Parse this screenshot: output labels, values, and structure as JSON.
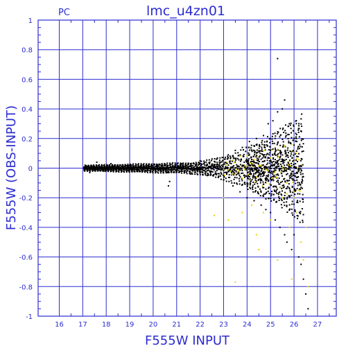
{
  "header": {
    "left_label": "PC",
    "title": "lmc_u4zn01"
  },
  "colors": {
    "axis": "#2b2bd0",
    "points_primary": "#000000",
    "points_secondary": "#e6d200",
    "background": "#ffffff"
  },
  "chart_data": {
    "type": "scatter",
    "title": "lmc_u4zn01",
    "xlabel": "F555W INPUT",
    "ylabel": "F555W (OBS-INPUT)",
    "xlim": [
      15.1,
      27.8
    ],
    "ylim": [
      -1,
      1
    ],
    "grid": true,
    "x_ticks": [
      "16",
      "17",
      "18",
      "19",
      "20",
      "21",
      "22",
      "23",
      "24",
      "25",
      "26",
      "27"
    ],
    "y_ticks": [
      "1",
      "0.8",
      "0.6",
      "0.4",
      "0.2",
      "0",
      "-0.2",
      "-0.4",
      "-0.6",
      "-0.8",
      "-1"
    ],
    "series": [
      {
        "color": "#000000",
        "points": [
          [
            17.1,
            0.02
          ],
          [
            17.3,
            -0.03
          ],
          [
            17.6,
            0.04
          ],
          [
            17.9,
            -0.02
          ],
          [
            18.2,
            0.03
          ],
          [
            18.6,
            -0.01
          ],
          [
            19.0,
            0.02
          ],
          [
            19.4,
            -0.02
          ],
          [
            19.8,
            0.01
          ],
          [
            20.2,
            0.02
          ],
          [
            20.6,
            -0.03
          ],
          [
            20.65,
            -0.12
          ],
          [
            20.7,
            -0.09
          ],
          [
            20.9,
            -0.01
          ],
          [
            21.2,
            0.03
          ],
          [
            21.6,
            -0.04
          ],
          [
            22.0,
            0.05
          ],
          [
            22.3,
            -0.05
          ],
          [
            22.7,
            0.06
          ],
          [
            23.0,
            -0.08
          ],
          [
            23.2,
            0.09
          ],
          [
            23.4,
            -0.12
          ],
          [
            23.5,
            0.12
          ],
          [
            23.7,
            -0.16
          ],
          [
            23.8,
            0.14
          ],
          [
            24.0,
            -0.2
          ],
          [
            24.1,
            0.18
          ],
          [
            24.3,
            -0.22
          ],
          [
            24.4,
            0.2
          ],
          [
            24.6,
            -0.25
          ],
          [
            24.7,
            0.22
          ],
          [
            24.8,
            -0.28
          ],
          [
            24.9,
            0.3
          ],
          [
            25.0,
            -0.3
          ],
          [
            25.1,
            0.32
          ],
          [
            25.2,
            -0.35
          ],
          [
            25.3,
            0.38
          ],
          [
            25.3,
            0.74
          ],
          [
            25.4,
            -0.4
          ],
          [
            25.5,
            0.4
          ],
          [
            25.6,
            0.46
          ],
          [
            25.6,
            -0.45
          ],
          [
            25.7,
            -0.5
          ],
          [
            25.8,
            0.3
          ],
          [
            25.9,
            -0.55
          ],
          [
            26.0,
            -0.45
          ],
          [
            26.1,
            0.2
          ],
          [
            26.2,
            -0.6
          ],
          [
            26.3,
            -0.65
          ],
          [
            26.4,
            -0.75
          ],
          [
            26.5,
            -0.85
          ],
          [
            26.6,
            -0.95
          ],
          [
            25.5,
            0.0
          ],
          [
            25.0,
            0.05
          ],
          [
            24.5,
            -0.05
          ]
        ]
      },
      {
        "color": "#e6d200",
        "points": [
          [
            22.6,
            -0.32
          ],
          [
            23.0,
            -0.2
          ],
          [
            23.2,
            -0.35
          ],
          [
            23.5,
            -0.77
          ],
          [
            23.8,
            -0.3
          ],
          [
            24.0,
            -0.05
          ],
          [
            24.2,
            -0.25
          ],
          [
            24.4,
            -0.45
          ],
          [
            24.5,
            -0.55
          ],
          [
            24.7,
            -0.3
          ],
          [
            25.0,
            -0.35
          ],
          [
            25.3,
            -0.62
          ],
          [
            25.5,
            -0.2
          ],
          [
            25.6,
            0.15
          ],
          [
            25.7,
            -0.1
          ],
          [
            25.8,
            -0.4
          ],
          [
            25.9,
            -0.75
          ],
          [
            26.0,
            0.05
          ],
          [
            26.0,
            -0.2
          ],
          [
            26.1,
            -0.3
          ],
          [
            26.2,
            -0.15
          ],
          [
            26.3,
            -0.5
          ],
          [
            26.4,
            -0.62
          ],
          [
            26.6,
            -0.8
          ],
          [
            26.3,
            0.02
          ],
          [
            26.1,
            0.1
          ],
          [
            25.9,
            0.16
          ],
          [
            24.8,
            -0.1
          ],
          [
            23.9,
            0.02
          ],
          [
            26.5,
            -0.4
          ]
        ]
      }
    ]
  }
}
